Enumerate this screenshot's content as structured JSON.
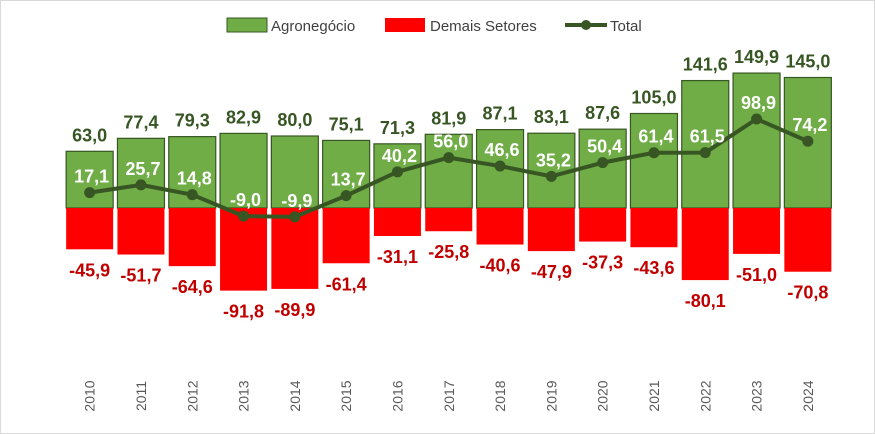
{
  "colors": {
    "agro": "#70ad47",
    "agro_border": "#375623",
    "demais": "#ff0000",
    "total_line": "#375623",
    "total_label": "#ffffff",
    "negative_label": "#c00000"
  },
  "legend": {
    "agro": "Agronegócio",
    "demais": "Demais Setores",
    "total": "Total"
  },
  "chart_data": {
    "type": "bar",
    "stacked": true,
    "legend_position": "top",
    "grid": false,
    "categories": [
      "2010",
      "2011",
      "2012",
      "2013",
      "2014",
      "2015",
      "2016",
      "2017",
      "2018",
      "2019",
      "2020",
      "2021",
      "2022",
      "2023",
      "2024"
    ],
    "series": [
      {
        "name": "Agronegócio",
        "type": "bar",
        "values": [
          63.0,
          77.4,
          79.3,
          82.9,
          80.0,
          75.1,
          71.3,
          81.9,
          87.1,
          83.1,
          87.6,
          105.0,
          141.6,
          149.9,
          145.0
        ],
        "labels": [
          "63,0",
          "77,4",
          "79,3",
          "82,9",
          "80,0",
          "75,1",
          "71,3",
          "81,9",
          "87,1",
          "83,1",
          "87,6",
          "105,0",
          "141,6",
          "149,9",
          "145,0"
        ]
      },
      {
        "name": "Demais Setores",
        "type": "bar",
        "values": [
          -45.9,
          -51.7,
          -64.6,
          -91.8,
          -89.9,
          -61.4,
          -31.1,
          -25.8,
          -40.6,
          -47.9,
          -37.3,
          -43.6,
          -80.1,
          -51.0,
          -70.8
        ],
        "labels": [
          "-45,9",
          "-51,7",
          "-64,6",
          "-91,8",
          "-89,9",
          "-61,4",
          "-31,1",
          "-25,8",
          "-40,6",
          "-47,9",
          "-37,3",
          "-43,6",
          "-80,1",
          "-51,0",
          "-70,8"
        ]
      },
      {
        "name": "Total",
        "type": "line",
        "values": [
          17.1,
          25.7,
          14.8,
          -9.0,
          -9.9,
          13.7,
          40.2,
          56.0,
          46.6,
          35.2,
          50.4,
          61.4,
          61.5,
          98.9,
          74.2
        ],
        "labels": [
          "17,1",
          "25,7",
          "14,8",
          "-9,0",
          "-9,9",
          "13,7",
          "40,2",
          "56,0",
          "46,6",
          "35,2",
          "50,4",
          "61,4",
          "61,5",
          "98,9",
          "74,2"
        ]
      }
    ]
  }
}
